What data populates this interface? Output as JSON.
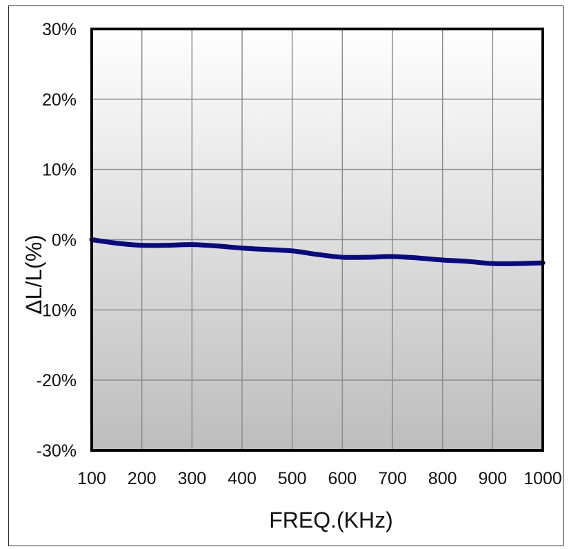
{
  "chart_data": {
    "type": "line",
    "title": "",
    "xlabel": "FREQ.(KHz)",
    "ylabel": "ΔL/L(%)",
    "x_ticks": [
      "100",
      "200",
      "300",
      "400",
      "500",
      "600",
      "700",
      "800",
      "900",
      "1000"
    ],
    "y_ticks": [
      "30%",
      "20%",
      "10%",
      "0%",
      "-10%",
      "-20%",
      "-30%"
    ],
    "xlim": [
      100,
      1000
    ],
    "ylim": [
      -30,
      30
    ],
    "grid": true,
    "series": [
      {
        "color": "#0a0a7a",
        "x": [
          100,
          150,
          200,
          250,
          300,
          350,
          400,
          450,
          500,
          550,
          600,
          650,
          700,
          750,
          800,
          850,
          900,
          950,
          1000
        ],
        "y": [
          0.0,
          -0.5,
          -0.8,
          -0.8,
          -0.7,
          -0.9,
          -1.2,
          -1.4,
          -1.6,
          -2.1,
          -2.5,
          -2.5,
          -2.4,
          -2.6,
          -2.9,
          -3.1,
          -3.4,
          -3.4,
          -3.3
        ]
      }
    ]
  }
}
